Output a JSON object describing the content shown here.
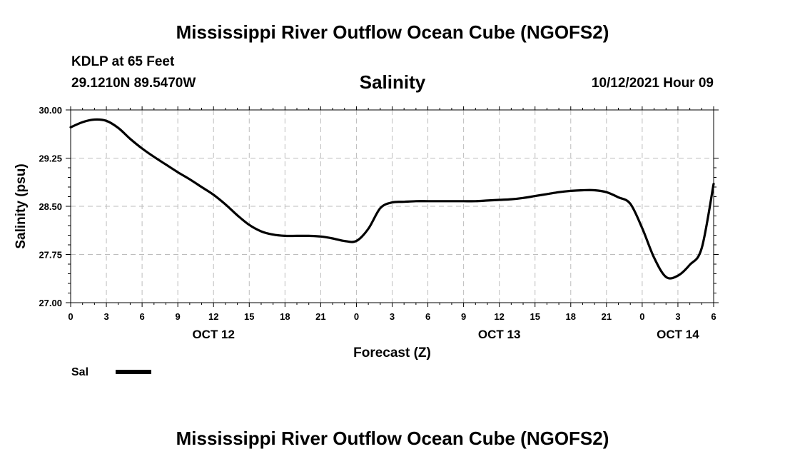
{
  "header": {
    "main_title": "Mississippi River Outflow Ocean Cube (NGOFS2)",
    "station_name": "KDLP at 65 Feet",
    "station_coords": "29.1210N  89.5470W",
    "forecast_time": "10/12/2021 Hour 09"
  },
  "footer": {
    "title": "Mississippi River Outflow Ocean Cube (NGOFS2)"
  },
  "chart_data": {
    "type": "line",
    "title": "Salinity",
    "xlabel": "Forecast (Z)",
    "ylabel": "Salinity (psu)",
    "xlim": [
      0,
      54
    ],
    "ylim": [
      27.0,
      30.0
    ],
    "yticks": [
      27.0,
      27.75,
      28.5,
      29.25,
      30.0
    ],
    "ytick_labels": [
      "27.00",
      "27.75",
      "28.50",
      "29.25",
      "30.00"
    ],
    "xticks": [
      0,
      3,
      6,
      9,
      12,
      15,
      18,
      21,
      24,
      27,
      30,
      33,
      36,
      39,
      42,
      45,
      48,
      51,
      54
    ],
    "xtick_labels": [
      "0",
      "3",
      "6",
      "9",
      "12",
      "15",
      "18",
      "21",
      "0",
      "3",
      "6",
      "9",
      "12",
      "15",
      "18",
      "21",
      "0",
      "3",
      "6"
    ],
    "day_labels": [
      {
        "x": 12,
        "label": "OCT 12"
      },
      {
        "x": 36,
        "label": "OCT 13"
      },
      {
        "x": 51,
        "label": "OCT 14"
      }
    ],
    "grid": true,
    "legend": {
      "placement": "bottom-left",
      "entries": [
        {
          "name": "Sal",
          "color": "#000000"
        }
      ]
    },
    "series": [
      {
        "name": "Sal",
        "color": "#000000",
        "x": [
          0,
          1,
          2,
          3,
          4,
          5,
          6,
          7,
          8,
          9,
          10,
          11,
          12,
          13,
          14,
          15,
          16,
          17,
          18,
          19,
          20,
          21,
          22,
          23,
          24,
          25,
          26,
          27,
          28,
          29,
          30,
          31,
          32,
          33,
          34,
          35,
          36,
          37,
          38,
          39,
          40,
          41,
          42,
          43,
          44,
          45,
          46,
          47,
          48,
          49,
          50,
          51,
          52,
          53,
          54
        ],
        "values": [
          29.73,
          29.81,
          29.85,
          29.83,
          29.72,
          29.55,
          29.4,
          29.27,
          29.15,
          29.03,
          28.92,
          28.8,
          28.68,
          28.53,
          28.36,
          28.21,
          28.11,
          28.06,
          28.04,
          28.04,
          28.04,
          28.03,
          28.0,
          27.96,
          27.96,
          28.15,
          28.47,
          28.56,
          28.57,
          28.58,
          28.58,
          28.58,
          28.58,
          28.58,
          28.58,
          28.59,
          28.6,
          28.61,
          28.63,
          28.66,
          28.69,
          28.72,
          28.74,
          28.75,
          28.75,
          28.72,
          28.64,
          28.54,
          28.16,
          27.7,
          27.4,
          27.42,
          27.59,
          27.85,
          28.85
        ]
      }
    ]
  }
}
